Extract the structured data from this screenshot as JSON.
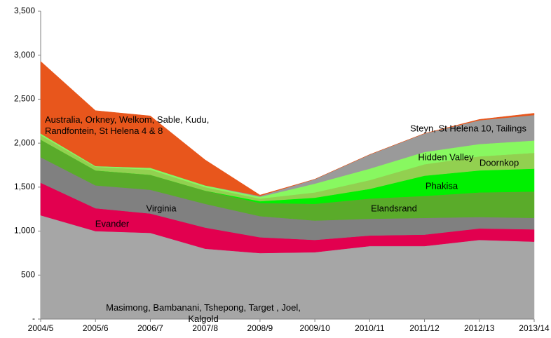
{
  "chart_data": {
    "type": "stacked_area",
    "categories": [
      "2004/5",
      "2005/6",
      "2006/7",
      "2007/8",
      "2008/9",
      "2009/10",
      "2010/11",
      "2011/12",
      "2012/13",
      "2013/14"
    ],
    "series": [
      {
        "name": "Masimong, Bambanani, Tshepong, Target , Joel, Kalgold",
        "color": "#a6a6a6",
        "values": [
          1180,
          1000,
          980,
          800,
          750,
          760,
          830,
          830,
          900,
          880
        ]
      },
      {
        "name": "Evander",
        "color": "#e2004f",
        "values": [
          370,
          260,
          220,
          240,
          180,
          140,
          120,
          130,
          130,
          140
        ]
      },
      {
        "name": "Virginia",
        "color": "#808080",
        "values": [
          290,
          260,
          270,
          270,
          240,
          220,
          190,
          190,
          130,
          130
        ]
      },
      {
        "name": "Elandsrand",
        "color": "#5aab2a",
        "values": [
          200,
          170,
          170,
          150,
          150,
          190,
          230,
          250,
          280,
          300
        ]
      },
      {
        "name": "Phakisa",
        "color": "#00f000",
        "values": [
          0,
          0,
          0,
          0,
          20,
          70,
          110,
          230,
          250,
          260
        ]
      },
      {
        "name": "Doornkop",
        "color": "#92d050",
        "values": [
          50,
          40,
          60,
          40,
          30,
          60,
          100,
          130,
          160,
          180
        ]
      },
      {
        "name": "Hidden Valley",
        "color": "#88f860",
        "values": [
          20,
          10,
          20,
          20,
          20,
          100,
          130,
          140,
          140,
          140
        ]
      },
      {
        "name": "Steyn, St Helena 10, Tailings",
        "color": "#9a9a9a",
        "values": [
          0,
          0,
          0,
          0,
          10,
          50,
          160,
          210,
          270,
          290
        ]
      },
      {
        "name": "Australia, Orkney, Welkom, Sable, Kudu, Randfontein, St Helena 4 & 8",
        "color": "#e8561c",
        "values": [
          820,
          630,
          590,
          290,
          10,
          0,
          0,
          0,
          10,
          20
        ]
      }
    ],
    "ylim": [
      0,
      3500
    ],
    "yticks": [
      {
        "value": 0,
        "label": "-"
      },
      500,
      {
        "value": 1000,
        "label": "1,000"
      },
      {
        "value": 1500,
        "label": "1,500"
      },
      {
        "value": 2000,
        "label": "2,000"
      },
      {
        "value": 2500,
        "label": "2,500"
      },
      {
        "value": 3000,
        "label": "3,000"
      },
      {
        "value": 3500,
        "label": "3,500"
      }
    ]
  }
}
